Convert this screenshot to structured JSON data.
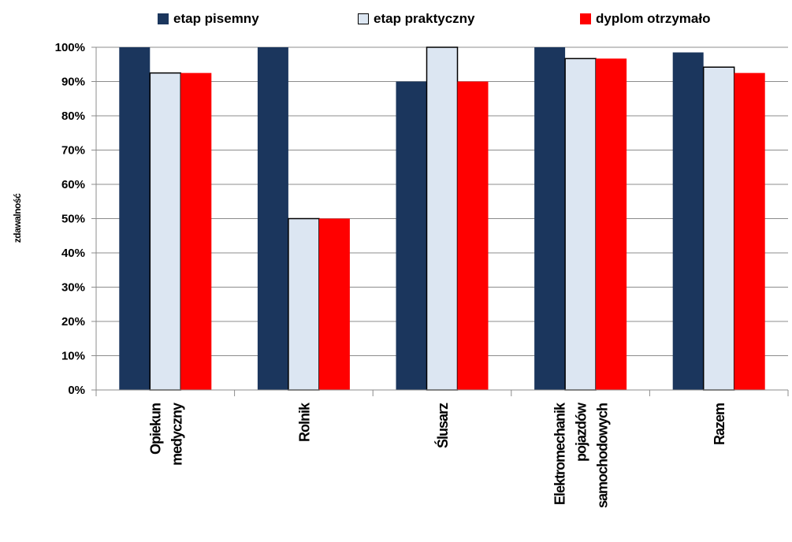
{
  "chart_data": {
    "type": "bar",
    "title": "",
    "xlabel": "",
    "ylabel": "zdawalność",
    "categories": [
      [
        "Opiekun",
        "medyczny"
      ],
      [
        "Rolnik"
      ],
      [
        "Ślusarz"
      ],
      [
        "Elektromechanik",
        "pojazdów",
        "samochodowych"
      ],
      [
        "Razem"
      ]
    ],
    "series": [
      {
        "name": "etap pisemny",
        "color": "#1b365d",
        "values": [
          100,
          100,
          90,
          100,
          98.5
        ]
      },
      {
        "name": "etap praktyczny",
        "color": "#dce6f2",
        "values": [
          92.5,
          50,
          100,
          96.7,
          94.2
        ]
      },
      {
        "name": "dyplom otrzymało",
        "color": "#ff0000",
        "values": [
          92.5,
          50,
          90,
          96.7,
          92.5
        ]
      }
    ],
    "ylim": [
      0,
      100
    ],
    "yticks": [
      "0%",
      "10%",
      "20%",
      "30%",
      "40%",
      "50%",
      "60%",
      "70%",
      "80%",
      "90%",
      "100%"
    ],
    "grid": true,
    "legend": "top"
  }
}
